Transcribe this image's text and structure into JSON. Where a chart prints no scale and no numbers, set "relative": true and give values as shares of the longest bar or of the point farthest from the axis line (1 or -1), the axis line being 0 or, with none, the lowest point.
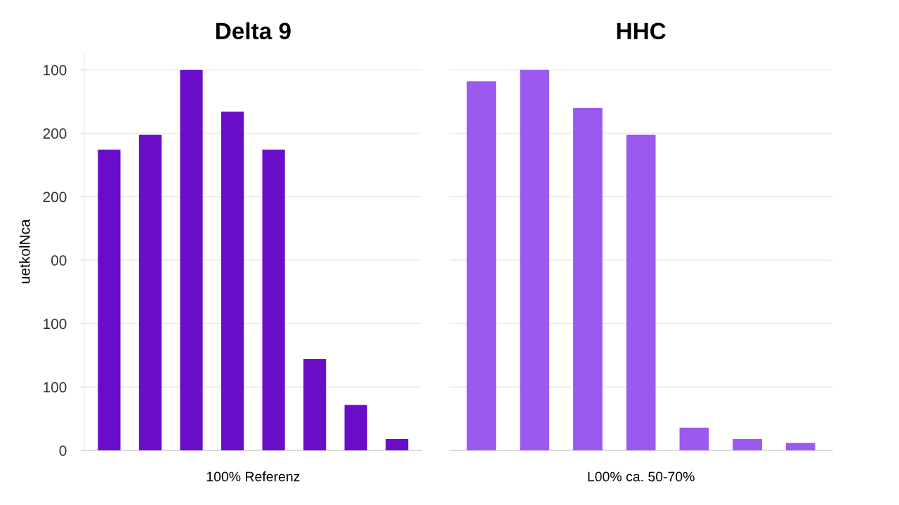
{
  "chart_data": [
    {
      "type": "bar",
      "title": "Delta 9",
      "xlabel": "100% Referenz",
      "ylabel": "uetkolNca",
      "categories": [
        null,
        null,
        null,
        null,
        null,
        null,
        null,
        null
      ],
      "values": [
        0.79,
        0.83,
        1,
        0.89,
        0.79,
        0.24,
        0.12,
        0.03
      ],
      "color": "#6a0dc8",
      "relative": true,
      "annotations": [
        "100",
        "200",
        "200",
        "00",
        "100",
        "100",
        "0"
      ],
      "grid": "y"
    },
    {
      "type": "bar",
      "title": "HHC",
      "xlabel": "L00% ca. 50-70%",
      "categories": [
        null,
        null,
        null,
        null,
        null,
        null,
        null
      ],
      "values": [
        0.97,
        1,
        0.9,
        0.83,
        0.06,
        0.03,
        0.02
      ],
      "color": "#9b59f0",
      "relative": true,
      "grid": "y"
    }
  ]
}
